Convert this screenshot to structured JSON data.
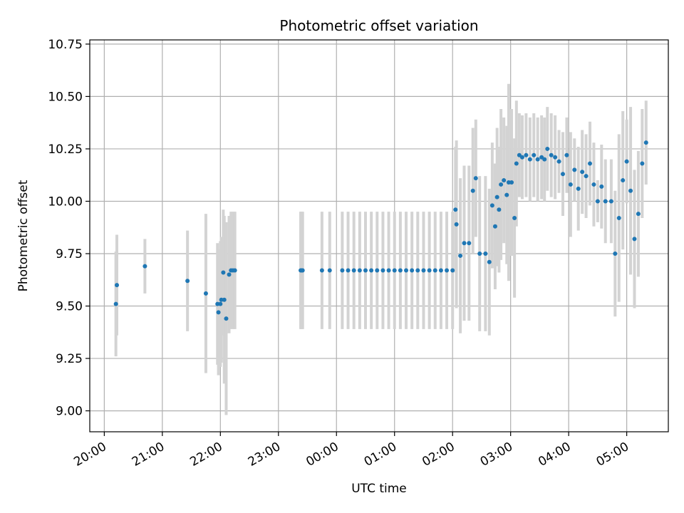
{
  "chart_data": {
    "type": "scatter",
    "title": "Photometric offset variation",
    "xlabel": "UTC time",
    "ylabel": "Photometric offset",
    "x_unit": "hours UTC (continuing past midnight)",
    "xlim": [
      "19:45",
      "05:43"
    ],
    "ylim": [
      8.9,
      10.77
    ],
    "x_ticks": [
      "20:00",
      "21:00",
      "22:00",
      "23:00",
      "00:00",
      "01:00",
      "02:00",
      "03:00",
      "04:00",
      "05:00"
    ],
    "y_ticks": [
      "9.00",
      "9.25",
      "9.50",
      "9.75",
      "10.00",
      "10.25",
      "10.50",
      "10.75"
    ],
    "grid": true,
    "colors": {
      "point": "#1f77b4",
      "errorbar": "#d3d3d3",
      "grid": "#b0b0b0"
    },
    "series": [
      {
        "x": [
          "20:12",
          "20:13",
          "20:42",
          "21:26",
          "21:45",
          "21:57",
          "21:58",
          "22:00",
          "22:01",
          "22:03",
          "22:04",
          "22:06",
          "22:09",
          "22:11",
          "22:13",
          "22:15",
          "23:23",
          "23:24",
          "23:25",
          "23:45",
          "23:53",
          "00:06",
          "00:12",
          "00:18",
          "00:24",
          "00:30",
          "00:36",
          "00:42",
          "00:48",
          "00:54",
          "01:00",
          "01:06",
          "01:12",
          "01:18",
          "01:24",
          "01:30",
          "01:36",
          "01:42",
          "01:48",
          "01:54",
          "02:00",
          "02:03",
          "02:04",
          "02:08",
          "02:12",
          "02:17",
          "02:21",
          "02:24",
          "02:28",
          "02:34",
          "02:38",
          "02:41",
          "02:44",
          "02:46",
          "02:48",
          "02:50",
          "02:53",
          "02:56",
          "02:58",
          "03:01",
          "03:04",
          "03:06",
          "03:09",
          "03:12",
          "03:16",
          "03:20",
          "03:24",
          "03:28",
          "03:32",
          "03:35",
          "03:38",
          "03:42",
          "03:46",
          "03:50",
          "03:54",
          "03:58",
          "04:02",
          "04:06",
          "04:10",
          "04:14",
          "04:18",
          "04:22",
          "04:26",
          "04:30",
          "04:34",
          "04:38",
          "04:44",
          "04:48",
          "04:52",
          "04:56",
          "05:00",
          "05:04",
          "05:08",
          "05:12",
          "05:16",
          "05:20"
        ],
        "y": [
          9.51,
          9.6,
          9.69,
          9.62,
          9.56,
          9.51,
          9.47,
          9.51,
          9.53,
          9.66,
          9.53,
          9.44,
          9.65,
          9.67,
          9.67,
          9.67,
          9.67,
          9.67,
          9.67,
          9.67,
          9.67,
          9.67,
          9.67,
          9.67,
          9.67,
          9.67,
          9.67,
          9.67,
          9.67,
          9.67,
          9.67,
          9.67,
          9.67,
          9.67,
          9.67,
          9.67,
          9.67,
          9.67,
          9.67,
          9.67,
          9.67,
          9.96,
          9.89,
          9.74,
          9.8,
          9.8,
          10.05,
          10.11,
          9.75,
          9.75,
          9.71,
          9.98,
          9.88,
          10.02,
          9.96,
          10.08,
          10.1,
          10.03,
          10.09,
          10.09,
          9.92,
          10.18,
          10.22,
          10.21,
          10.22,
          10.2,
          10.22,
          10.2,
          10.21,
          10.2,
          10.25,
          10.22,
          10.21,
          10.19,
          10.13,
          10.22,
          10.08,
          10.15,
          10.06,
          10.14,
          10.12,
          10.18,
          10.08,
          10.0,
          10.07,
          10.0,
          10.0,
          9.75,
          9.92,
          10.1,
          10.19,
          10.05,
          9.82,
          9.94,
          10.18,
          10.28
        ],
        "err": [
          0.25,
          0.24,
          0.13,
          0.24,
          0.38,
          0.29,
          0.3,
          0.3,
          0.3,
          0.3,
          0.4,
          0.46,
          0.28,
          0.28,
          0.28,
          0.28,
          0.28,
          0.28,
          0.28,
          0.28,
          0.28,
          0.28,
          0.28,
          0.28,
          0.28,
          0.28,
          0.28,
          0.28,
          0.28,
          0.28,
          0.28,
          0.28,
          0.28,
          0.28,
          0.28,
          0.28,
          0.28,
          0.28,
          0.28,
          0.28,
          0.28,
          0.3,
          0.4,
          0.37,
          0.37,
          0.37,
          0.3,
          0.28,
          0.37,
          0.37,
          0.35,
          0.3,
          0.3,
          0.33,
          0.3,
          0.36,
          0.3,
          0.33,
          0.47,
          0.35,
          0.38,
          0.3,
          0.2,
          0.2,
          0.2,
          0.2,
          0.2,
          0.2,
          0.2,
          0.2,
          0.2,
          0.2,
          0.2,
          0.15,
          0.2,
          0.18,
          0.25,
          0.15,
          0.2,
          0.2,
          0.2,
          0.2,
          0.2,
          0.1,
          0.2,
          0.2,
          0.2,
          0.3,
          0.4,
          0.33,
          0.2,
          0.4,
          0.33,
          0.3,
          0.26,
          0.2
        ]
      }
    ]
  }
}
